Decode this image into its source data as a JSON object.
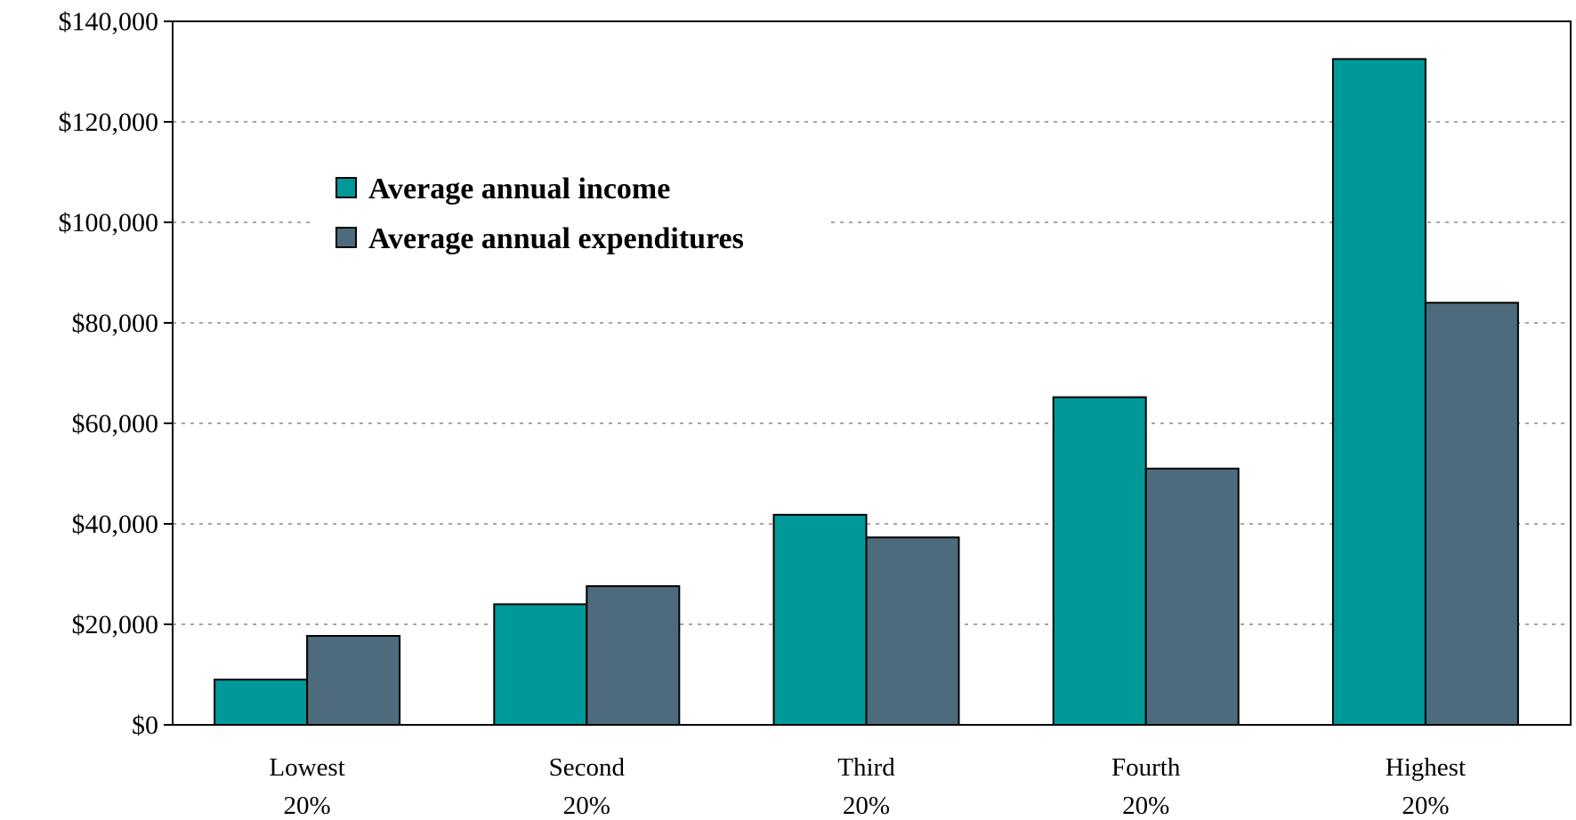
{
  "chart_data": {
    "type": "bar",
    "title": "",
    "xlabel": "",
    "ylabel": "",
    "ylim": [
      0,
      140000
    ],
    "y_ticks": [
      0,
      20000,
      40000,
      60000,
      80000,
      100000,
      120000,
      140000
    ],
    "y_tick_labels": [
      "$0",
      "$20,000",
      "$40,000",
      "$60,000",
      "$80,000",
      "$100,000",
      "$120,000",
      "$140,000"
    ],
    "categories": [
      [
        "Lowest",
        "20%"
      ],
      [
        "Second",
        "20%"
      ],
      [
        "Third",
        "20%"
      ],
      [
        "Fourth",
        "20%"
      ],
      [
        "Highest",
        "20%"
      ]
    ],
    "series": [
      {
        "name": "Average annual income",
        "color": "#009999",
        "values": [
          9000,
          24000,
          41800,
          65200,
          132500
        ]
      },
      {
        "name": "Average annual expenditures",
        "color": "#4d6b7d",
        "values": [
          17700,
          27600,
          37300,
          51000,
          84000
        ]
      }
    ],
    "grid": true,
    "legend": "top-left"
  }
}
